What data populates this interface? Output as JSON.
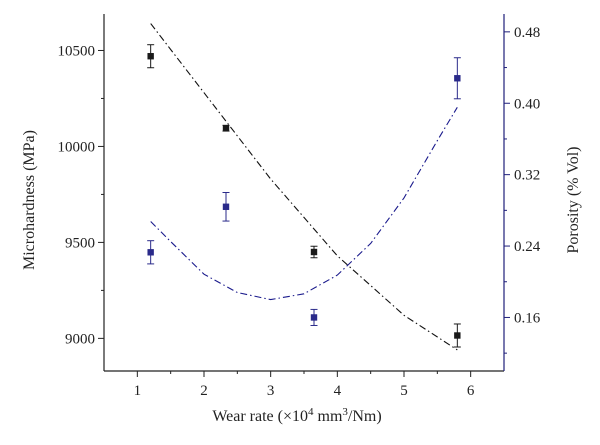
{
  "chart_data": {
    "type": "scatter",
    "xlabel": "Wear rate (×10⁴ mm³/Nm)",
    "xlabel_parts": {
      "prefix": "Wear rate (×10",
      "exp1": "4",
      "mid": " mm",
      "exp2": "3",
      "suffix": "/Nm)"
    },
    "ylabel_left": "Microhardness (MPa)",
    "ylabel_right": "Porosity (% Vol)",
    "xlim": [
      0.5,
      6.5
    ],
    "ylim_left": [
      8830,
      10690
    ],
    "ylim_right": [
      0.1,
      0.5
    ],
    "x_ticks": [
      "1",
      "2",
      "3",
      "4",
      "5",
      "6"
    ],
    "y_left_ticks": [
      "9000",
      "9500",
      "10000",
      "10500"
    ],
    "y_right_ticks": [
      "0.16",
      "0.24",
      "0.32",
      "0.40",
      "0.48"
    ],
    "series": [
      {
        "axis": "left",
        "color": "#1a1a1a",
        "points": [
          {
            "x": 1.2,
            "y": 10470,
            "err": 60
          },
          {
            "x": 2.33,
            "y": 10095,
            "err": 15
          },
          {
            "x": 3.65,
            "y": 9450,
            "err": 30
          },
          {
            "x": 5.8,
            "y": 9015,
            "err": 60
          }
        ],
        "fit": [
          [
            1.2,
            10640
          ],
          [
            2.0,
            10280
          ],
          [
            3.0,
            9830
          ],
          [
            4.0,
            9430
          ],
          [
            5.0,
            9120
          ],
          [
            5.8,
            8940
          ]
        ]
      },
      {
        "axis": "right",
        "color": "#2a2a8a",
        "points": [
          {
            "x": 1.2,
            "y": 0.233,
            "err": 0.013
          },
          {
            "x": 2.33,
            "y": 0.284,
            "err": 0.016
          },
          {
            "x": 3.65,
            "y": 0.16,
            "err": 0.009
          },
          {
            "x": 5.8,
            "y": 0.428,
            "err": 0.023
          }
        ],
        "fit": [
          [
            1.2,
            0.2675
          ],
          [
            1.5,
            0.245
          ],
          [
            2.0,
            0.2085
          ],
          [
            2.5,
            0.188
          ],
          [
            3.0,
            0.18
          ],
          [
            3.5,
            0.1865
          ],
          [
            4.0,
            0.2075
          ],
          [
            4.5,
            0.243
          ],
          [
            5.0,
            0.294
          ],
          [
            5.5,
            0.358
          ],
          [
            5.8,
            0.3955
          ]
        ]
      }
    ]
  }
}
